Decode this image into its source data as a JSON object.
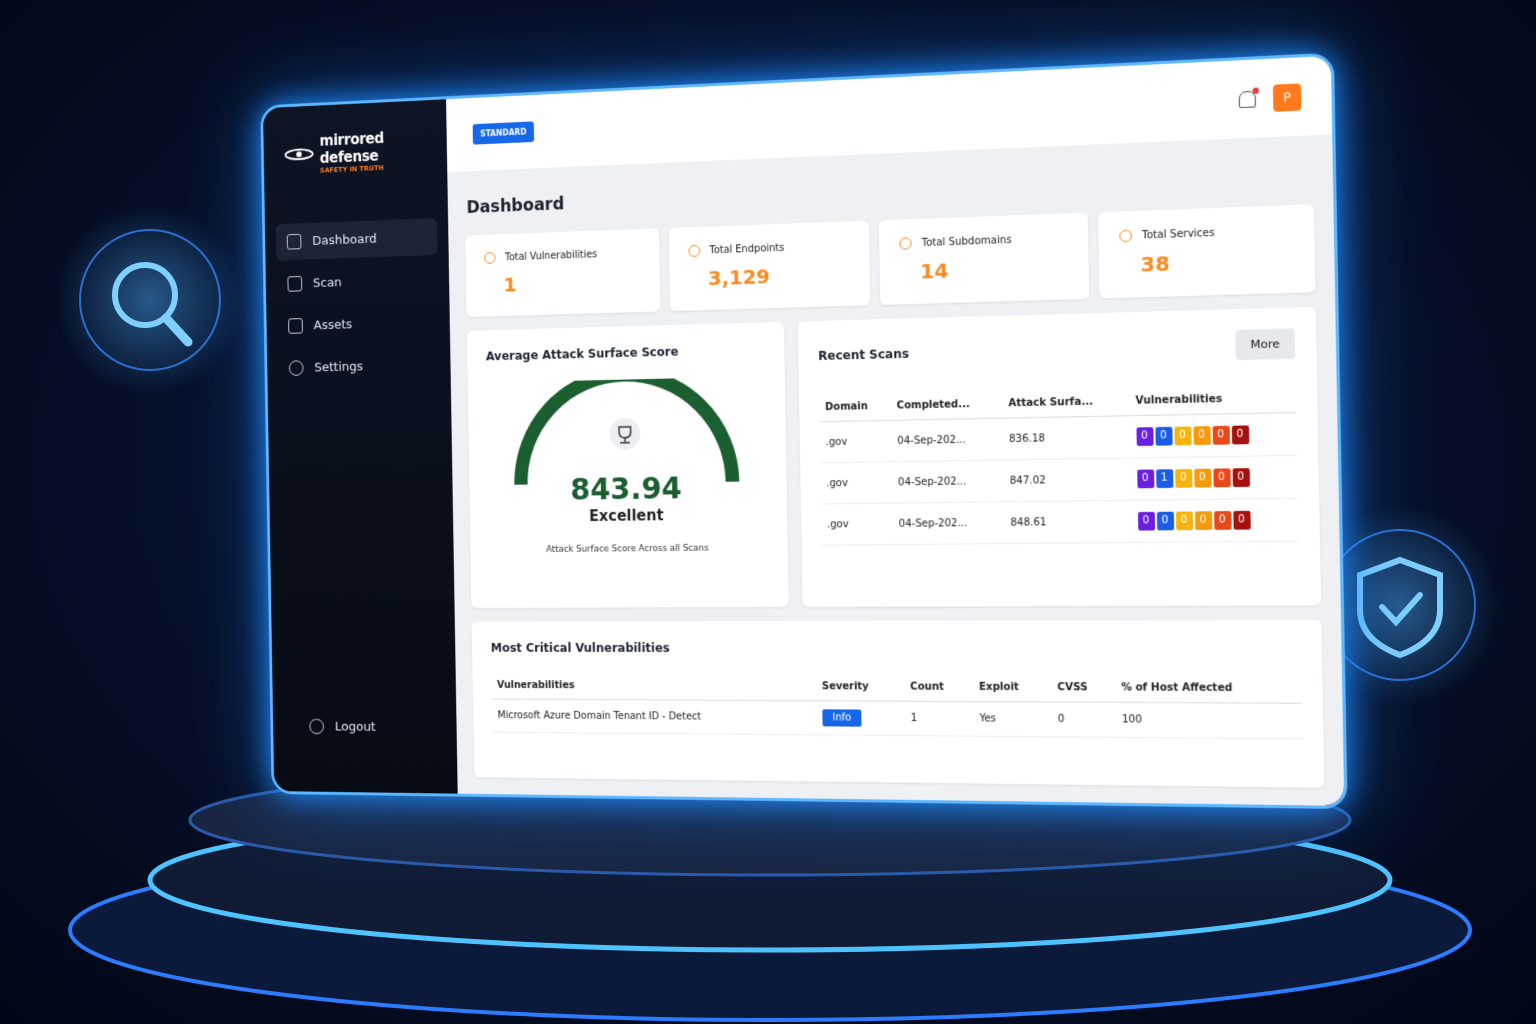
{
  "brand": {
    "name": "mirrored defense",
    "tagline": "SAFETY IN TRUTH"
  },
  "nav": [
    "Dashboard",
    "Scan",
    "Assets",
    "Settings"
  ],
  "logout": "Logout",
  "header": {
    "plan": "STANDARD",
    "avatar": "P"
  },
  "page_title": "Dashboard",
  "stats": [
    {
      "label": "Total Vulnerabilities",
      "value": "1"
    },
    {
      "label": "Total Endpoints",
      "value": "3,129"
    },
    {
      "label": "Total Subdomains",
      "value": "14"
    },
    {
      "label": "Total Services",
      "value": "38"
    }
  ],
  "score": {
    "title": "Average Attack Surface Score",
    "value": "843.94",
    "rating": "Excellent",
    "caption": "Attack Surface Score Across all Scans"
  },
  "recent_scans": {
    "title": "Recent Scans",
    "more": "More",
    "columns": [
      "Domain",
      "Completed...",
      "Attack Surfa...",
      "Vulnerabilities"
    ],
    "rows": [
      {
        "domain": ".gov",
        "completed": "04-Sep-202...",
        "score": "836.18",
        "vulns": [
          "0",
          "0",
          "0",
          "0",
          "0",
          "0"
        ]
      },
      {
        "domain": ".gov",
        "completed": "04-Sep-202...",
        "score": "847.02",
        "vulns": [
          "0",
          "1",
          "0",
          "0",
          "0",
          "0"
        ]
      },
      {
        "domain": ".gov",
        "completed": "04-Sep-202...",
        "score": "848.61",
        "vulns": [
          "0",
          "0",
          "0",
          "0",
          "0",
          "0"
        ]
      }
    ]
  },
  "critical": {
    "title": "Most Critical Vulnerabilities",
    "columns": [
      "Vulnerabilities",
      "Severity",
      "Count",
      "Exploit",
      "CVSS",
      "% of Host Affected"
    ],
    "rows": [
      [
        "Microsoft Azure Domain Tenant ID - Detect",
        "Info",
        "1",
        "Yes",
        "0",
        "100"
      ]
    ]
  }
}
